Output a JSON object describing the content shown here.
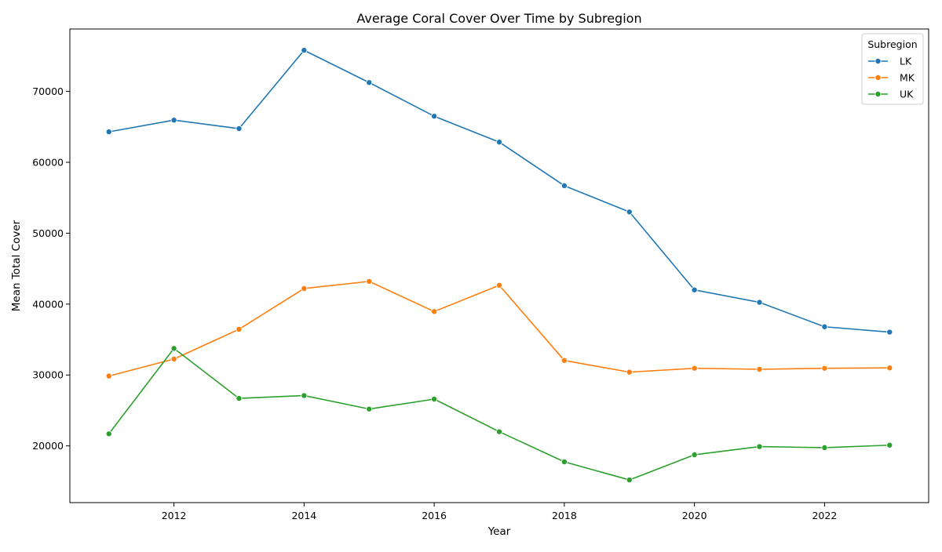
{
  "chart_data": {
    "type": "line",
    "title": "Average Coral Cover Over Time by Subregion",
    "xlabel": "Year",
    "ylabel": "Mean Total Cover",
    "xlim": [
      2010.4,
      2023.6
    ],
    "ylim": [
      12000,
      78800
    ],
    "xticks": [
      2012,
      2014,
      2016,
      2018,
      2020,
      2022
    ],
    "yticks": [
      20000,
      30000,
      40000,
      50000,
      60000,
      70000
    ],
    "grid": false,
    "legend": {
      "title": "Subregion",
      "placement": "top-right"
    },
    "x": [
      2011,
      2012,
      2013,
      2014,
      2015,
      2016,
      2017,
      2018,
      2019,
      2020,
      2021,
      2022,
      2023
    ],
    "series": [
      {
        "name": "LK",
        "color": "#1f77b4",
        "values": [
          64300,
          65950,
          64750,
          75800,
          71250,
          66500,
          62850,
          56700,
          53000,
          42000,
          40250,
          36800,
          36050
        ]
      },
      {
        "name": "MK",
        "color": "#ff7f0e",
        "values": [
          29850,
          32250,
          36450,
          42200,
          43200,
          38950,
          42650,
          32050,
          30400,
          30950,
          30800,
          30950,
          31000
        ]
      },
      {
        "name": "UK",
        "color": "#2ca02c",
        "values": [
          21700,
          33750,
          26700,
          27100,
          25200,
          26600,
          22000,
          17750,
          15200,
          18750,
          19900,
          19750,
          20100
        ]
      }
    ]
  }
}
